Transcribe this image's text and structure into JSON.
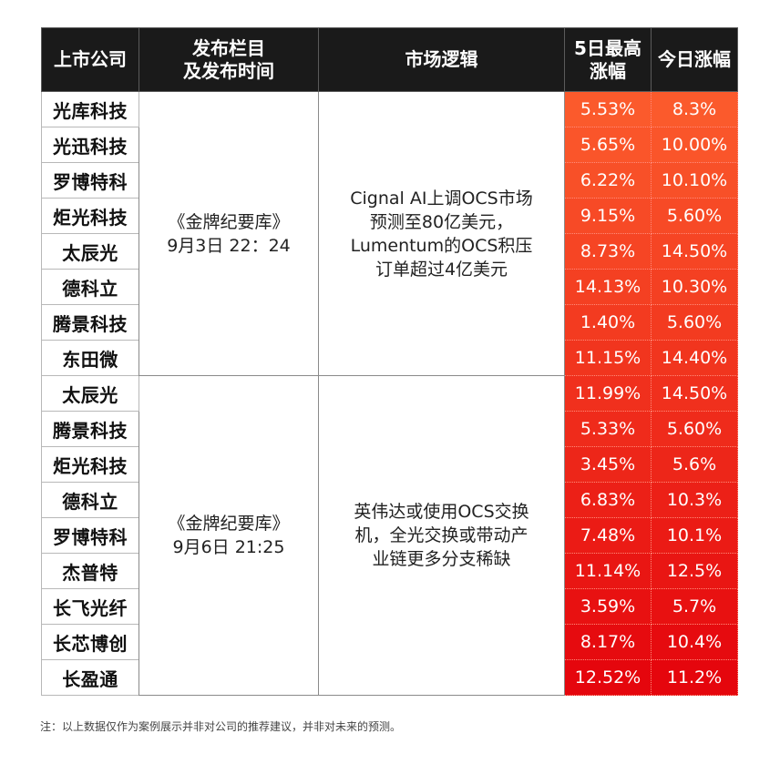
{
  "headers": {
    "company": "上市公司",
    "source_line1": "发布栏目",
    "source_line2": "及发布时间",
    "logic": "市场逻辑",
    "high_line1": "5日最高",
    "high_line2": "涨幅",
    "today": "今日涨幅"
  },
  "groups": [
    {
      "source_name": "《金牌纪要库》",
      "source_time": "9月3日 22：24",
      "logic_lines": [
        "Cignal AI上调OCS市场",
        "预测至80亿美元，",
        "Lumentum的OCS积压",
        "订单超过4亿美元"
      ],
      "rows": [
        {
          "company": "光库科技",
          "high": "5.53%",
          "today": "8.3%"
        },
        {
          "company": "光迅科技",
          "high": "5.65%",
          "today": "10.00%"
        },
        {
          "company": "罗博特科",
          "high": "6.22%",
          "today": "10.10%"
        },
        {
          "company": "炬光科技",
          "high": "9.15%",
          "today": "5.60%"
        },
        {
          "company": "太辰光",
          "high": "8.73%",
          "today": "14.50%"
        },
        {
          "company": "德科立",
          "high": "14.13%",
          "today": "10.30%"
        },
        {
          "company": "腾景科技",
          "high": "1.40%",
          "today": "5.60%"
        },
        {
          "company": "东田微",
          "high": "11.15%",
          "today": "14.40%"
        }
      ]
    },
    {
      "source_name": "《金牌纪要库》",
      "source_time": "9月6日 21:25",
      "logic_lines": [
        "英伟达或使用OCS交换",
        "机，全光交换或带动产",
        "业链更多分支稀缺"
      ],
      "rows": [
        {
          "company": "太辰光",
          "high": "11.99%",
          "today": "14.50%"
        },
        {
          "company": "腾景科技",
          "high": "5.33%",
          "today": "5.60%"
        },
        {
          "company": "炬光科技",
          "high": "3.45%",
          "today": "5.6%"
        },
        {
          "company": "德科立",
          "high": "6.83%",
          "today": "10.3%"
        },
        {
          "company": "罗博特科",
          "high": "7.48%",
          "today": "10.1%"
        },
        {
          "company": "杰普特",
          "high": "11.14%",
          "today": "12.5%"
        },
        {
          "company": "长飞光纤",
          "high": "3.59%",
          "today": "5.7%"
        },
        {
          "company": "长芯博创",
          "high": "8.17%",
          "today": "10.4%"
        },
        {
          "company": "长盈通",
          "high": "12.52%",
          "today": "11.2%"
        }
      ]
    }
  ],
  "footnote": "注：以上数据仅作为案例展示并非对公司的推荐建议，并非对未来的预测。",
  "colors": {
    "header_bg": "#1a1a1a",
    "gradient_top": "#fb5a2c",
    "gradient_bottom": "#e5060d"
  }
}
